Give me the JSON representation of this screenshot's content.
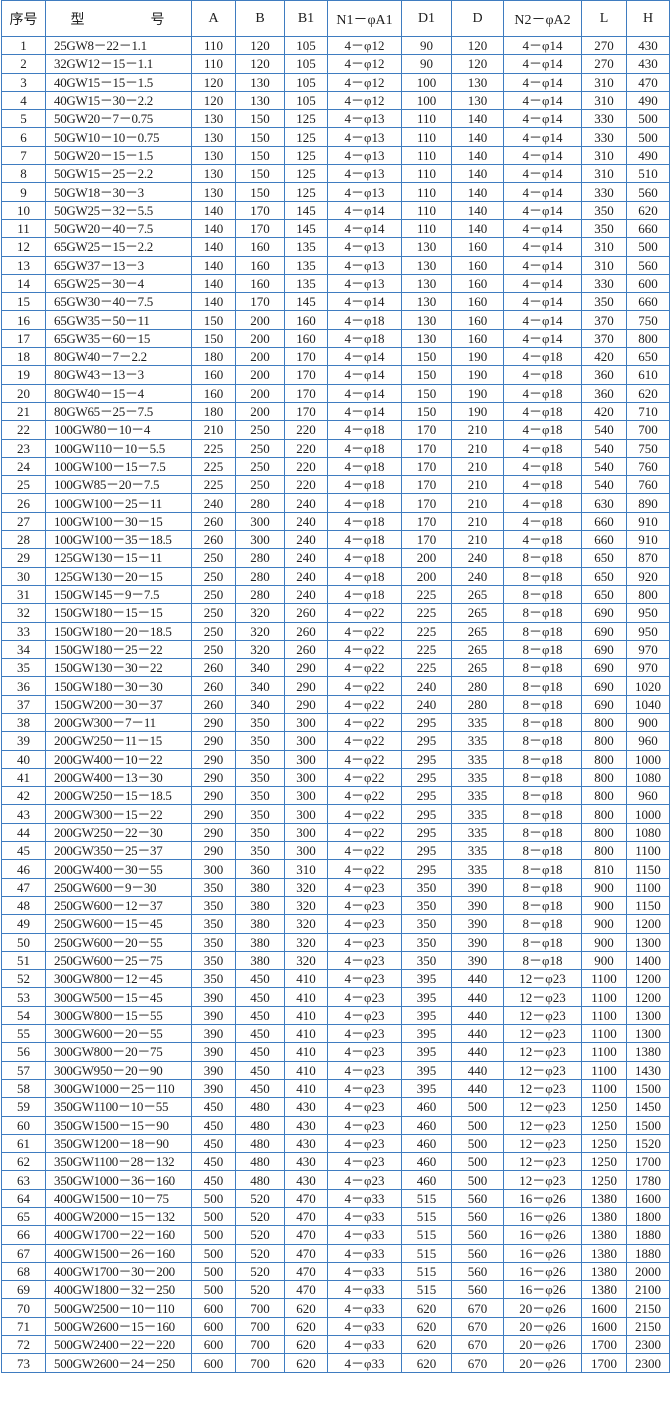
{
  "table": {
    "headers": [
      "序号",
      "型　　　　号",
      "A",
      "B",
      "B1",
      "N1－φA1",
      "D1",
      "D",
      "N2－φA2",
      "L",
      "H"
    ],
    "rows": [
      [
        "1",
        "25GW8－22－1.1",
        "110",
        "120",
        "105",
        "4－φ12",
        "90",
        "120",
        "4－φ14",
        "270",
        "430"
      ],
      [
        "2",
        "32GW12－15－1.1",
        "110",
        "120",
        "105",
        "4－φ12",
        "90",
        "120",
        "4－φ14",
        "270",
        "430"
      ],
      [
        "3",
        "40GW15－15－1.5",
        "120",
        "130",
        "105",
        "4－φ12",
        "100",
        "130",
        "4－φ14",
        "310",
        "470"
      ],
      [
        "4",
        "40GW15－30－2.2",
        "120",
        "130",
        "105",
        "4－φ12",
        "100",
        "130",
        "4－φ14",
        "310",
        "490"
      ],
      [
        "5",
        "50GW20－7－0.75",
        "130",
        "150",
        "125",
        "4－φ13",
        "110",
        "140",
        "4－φ14",
        "330",
        "500"
      ],
      [
        "6",
        "50GW10－10－0.75",
        "130",
        "150",
        "125",
        "4－φ13",
        "110",
        "140",
        "4－φ14",
        "330",
        "500"
      ],
      [
        "7",
        "50GW20－15－1.5",
        "130",
        "150",
        "125",
        "4－φ13",
        "110",
        "140",
        "4－φ14",
        "310",
        "490"
      ],
      [
        "8",
        "50GW15－25－2.2",
        "130",
        "150",
        "125",
        "4－φ13",
        "110",
        "140",
        "4－φ14",
        "310",
        "510"
      ],
      [
        "9",
        "50GW18－30－3",
        "130",
        "150",
        "125",
        "4－φ13",
        "110",
        "140",
        "4－φ14",
        "330",
        "560"
      ],
      [
        "10",
        "50GW25－32－5.5",
        "140",
        "170",
        "145",
        "4－φ14",
        "110",
        "140",
        "4－φ14",
        "350",
        "620"
      ],
      [
        "11",
        "50GW20－40－7.5",
        "140",
        "170",
        "145",
        "4－φ14",
        "110",
        "140",
        "4－φ14",
        "350",
        "660"
      ],
      [
        "12",
        "65GW25－15－2.2",
        "140",
        "160",
        "135",
        "4－φ13",
        "130",
        "160",
        "4－φ14",
        "310",
        "500"
      ],
      [
        "13",
        "65GW37－13－3",
        "140",
        "160",
        "135",
        "4－φ13",
        "130",
        "160",
        "4－φ14",
        "310",
        "560"
      ],
      [
        "14",
        "65GW25－30－4",
        "140",
        "160",
        "135",
        "4－φ13",
        "130",
        "160",
        "4－φ14",
        "330",
        "600"
      ],
      [
        "15",
        "65GW30－40－7.5",
        "140",
        "170",
        "145",
        "4－φ14",
        "130",
        "160",
        "4－φ14",
        "350",
        "660"
      ],
      [
        "16",
        "65GW35－50－11",
        "150",
        "200",
        "160",
        "4－φ18",
        "130",
        "160",
        "4－φ14",
        "370",
        "750"
      ],
      [
        "17",
        "65GW35－60－15",
        "150",
        "200",
        "160",
        "4－φ18",
        "130",
        "160",
        "4－φ14",
        "370",
        "800"
      ],
      [
        "18",
        "80GW40－7－2.2",
        "180",
        "200",
        "170",
        "4－φ14",
        "150",
        "190",
        "4－φ18",
        "420",
        "650"
      ],
      [
        "19",
        "80GW43－13－3",
        "160",
        "200",
        "170",
        "4－φ14",
        "150",
        "190",
        "4－φ18",
        "360",
        "610"
      ],
      [
        "20",
        "80GW40－15－4",
        "160",
        "200",
        "170",
        "4－φ14",
        "150",
        "190",
        "4－φ18",
        "360",
        "620"
      ],
      [
        "21",
        "80GW65－25－7.5",
        "180",
        "200",
        "170",
        "4－φ14",
        "150",
        "190",
        "4－φ18",
        "420",
        "710"
      ],
      [
        "22",
        "100GW80－10－4",
        "210",
        "250",
        "220",
        "4－φ18",
        "170",
        "210",
        "4－φ18",
        "540",
        "700"
      ],
      [
        "23",
        "100GW110－10－5.5",
        "225",
        "250",
        "220",
        "4－φ18",
        "170",
        "210",
        "4－φ18",
        "540",
        "750"
      ],
      [
        "24",
        "100GW100－15－7.5",
        "225",
        "250",
        "220",
        "4－φ18",
        "170",
        "210",
        "4－φ18",
        "540",
        "760"
      ],
      [
        "25",
        "100GW85－20－7.5",
        "225",
        "250",
        "220",
        "4－φ18",
        "170",
        "210",
        "4－φ18",
        "540",
        "760"
      ],
      [
        "26",
        "100GW100－25－11",
        "240",
        "280",
        "240",
        "4－φ18",
        "170",
        "210",
        "4－φ18",
        "630",
        "890"
      ],
      [
        "27",
        "100GW100－30－15",
        "260",
        "300",
        "240",
        "4－φ18",
        "170",
        "210",
        "4－φ18",
        "660",
        "910"
      ],
      [
        "28",
        "100GW100－35－18.5",
        "260",
        "300",
        "240",
        "4－φ18",
        "170",
        "210",
        "4－φ18",
        "660",
        "910"
      ],
      [
        "29",
        "125GW130－15－11",
        "250",
        "280",
        "240",
        "4－φ18",
        "200",
        "240",
        "8－φ18",
        "650",
        "870"
      ],
      [
        "30",
        "125GW130－20－15",
        "250",
        "280",
        "240",
        "4－φ18",
        "200",
        "240",
        "8－φ18",
        "650",
        "920"
      ],
      [
        "31",
        "150GW145－9－7.5",
        "250",
        "280",
        "240",
        "4－φ18",
        "225",
        "265",
        "8－φ18",
        "650",
        "800"
      ],
      [
        "32",
        "150GW180－15－15",
        "250",
        "320",
        "260",
        "4－φ22",
        "225",
        "265",
        "8－φ18",
        "690",
        "950"
      ],
      [
        "33",
        "150GW180－20－18.5",
        "250",
        "320",
        "260",
        "4－φ22",
        "225",
        "265",
        "8－φ18",
        "690",
        "950"
      ],
      [
        "34",
        "150GW180－25－22",
        "250",
        "320",
        "260",
        "4－φ22",
        "225",
        "265",
        "8－φ18",
        "690",
        "970"
      ],
      [
        "35",
        "150GW130－30－22",
        "260",
        "340",
        "290",
        "4－φ22",
        "225",
        "265",
        "8－φ18",
        "690",
        "970"
      ],
      [
        "36",
        "150GW180－30－30",
        "260",
        "340",
        "290",
        "4－φ22",
        "240",
        "280",
        "8－φ18",
        "690",
        "1020"
      ],
      [
        "37",
        "150GW200－30－37",
        "260",
        "340",
        "290",
        "4－φ22",
        "240",
        "280",
        "8－φ18",
        "690",
        "1040"
      ],
      [
        "38",
        "200GW300－7－11",
        "290",
        "350",
        "300",
        "4－φ22",
        "295",
        "335",
        "8－φ18",
        "800",
        "900"
      ],
      [
        "39",
        "200GW250－11－15",
        "290",
        "350",
        "300",
        "4－φ22",
        "295",
        "335",
        "8－φ18",
        "800",
        "960"
      ],
      [
        "40",
        "200GW400－10－22",
        "290",
        "350",
        "300",
        "4－φ22",
        "295",
        "335",
        "8－φ18",
        "800",
        "1000"
      ],
      [
        "41",
        "200GW400－13－30",
        "290",
        "350",
        "300",
        "4－φ22",
        "295",
        "335",
        "8－φ18",
        "800",
        "1080"
      ],
      [
        "42",
        "200GW250－15－18.5",
        "290",
        "350",
        "300",
        "4－φ22",
        "295",
        "335",
        "8－φ18",
        "800",
        "960"
      ],
      [
        "43",
        "200GW300－15－22",
        "290",
        "350",
        "300",
        "4－φ22",
        "295",
        "335",
        "8－φ18",
        "800",
        "1000"
      ],
      [
        "44",
        "200GW250－22－30",
        "290",
        "350",
        "300",
        "4－φ22",
        "295",
        "335",
        "8－φ18",
        "800",
        "1080"
      ],
      [
        "45",
        "200GW350－25－37",
        "290",
        "350",
        "300",
        "4－φ22",
        "295",
        "335",
        "8－φ18",
        "800",
        "1100"
      ],
      [
        "46",
        "200GW400－30－55",
        "300",
        "360",
        "310",
        "4－φ22",
        "295",
        "335",
        "8－φ18",
        "810",
        "1150"
      ],
      [
        "47",
        "250GW600－9－30",
        "350",
        "380",
        "320",
        "4－φ23",
        "350",
        "390",
        "8－φ18",
        "900",
        "1100"
      ],
      [
        "48",
        "250GW600－12－37",
        "350",
        "380",
        "320",
        "4－φ23",
        "350",
        "390",
        "8－φ18",
        "900",
        "1150"
      ],
      [
        "49",
        "250GW600－15－45",
        "350",
        "380",
        "320",
        "4－φ23",
        "350",
        "390",
        "8－φ18",
        "900",
        "1200"
      ],
      [
        "50",
        "250GW600－20－55",
        "350",
        "380",
        "320",
        "4－φ23",
        "350",
        "390",
        "8－φ18",
        "900",
        "1300"
      ],
      [
        "51",
        "250GW600－25－75",
        "350",
        "380",
        "320",
        "4－φ23",
        "350",
        "390",
        "8－φ18",
        "900",
        "1400"
      ],
      [
        "52",
        "300GW800－12－45",
        "350",
        "450",
        "410",
        "4－φ23",
        "395",
        "440",
        "12－φ23",
        "1100",
        "1200"
      ],
      [
        "53",
        "300GW500－15－45",
        "390",
        "450",
        "410",
        "4－φ23",
        "395",
        "440",
        "12－φ23",
        "1100",
        "1200"
      ],
      [
        "54",
        "300GW800－15－55",
        "390",
        "450",
        "410",
        "4－φ23",
        "395",
        "440",
        "12－φ23",
        "1100",
        "1300"
      ],
      [
        "55",
        "300GW600－20－55",
        "390",
        "450",
        "410",
        "4－φ23",
        "395",
        "440",
        "12－φ23",
        "1100",
        "1300"
      ],
      [
        "56",
        "300GW800－20－75",
        "390",
        "450",
        "410",
        "4－φ23",
        "395",
        "440",
        "12－φ23",
        "1100",
        "1380"
      ],
      [
        "57",
        "300GW950－20－90",
        "390",
        "450",
        "410",
        "4－φ23",
        "395",
        "440",
        "12－φ23",
        "1100",
        "1430"
      ],
      [
        "58",
        "300GW1000－25－110",
        "390",
        "450",
        "410",
        "4－φ23",
        "395",
        "440",
        "12－φ23",
        "1100",
        "1500"
      ],
      [
        "59",
        "350GW1100－10－55",
        "450",
        "480",
        "430",
        "4－φ23",
        "460",
        "500",
        "12－φ23",
        "1250",
        "1450"
      ],
      [
        "60",
        "350GW1500－15－90",
        "450",
        "480",
        "430",
        "4－φ23",
        "460",
        "500",
        "12－φ23",
        "1250",
        "1500"
      ],
      [
        "61",
        "350GW1200－18－90",
        "450",
        "480",
        "430",
        "4－φ23",
        "460",
        "500",
        "12－φ23",
        "1250",
        "1520"
      ],
      [
        "62",
        "350GW1100－28－132",
        "450",
        "480",
        "430",
        "4－φ23",
        "460",
        "500",
        "12－φ23",
        "1250",
        "1700"
      ],
      [
        "63",
        "350GW1000－36－160",
        "450",
        "480",
        "430",
        "4－φ23",
        "460",
        "500",
        "12－φ23",
        "1250",
        "1780"
      ],
      [
        "64",
        "400GW1500－10－75",
        "500",
        "520",
        "470",
        "4－φ33",
        "515",
        "560",
        "16－φ26",
        "1380",
        "1600"
      ],
      [
        "65",
        "400GW2000－15－132",
        "500",
        "520",
        "470",
        "4－φ33",
        "515",
        "560",
        "16－φ26",
        "1380",
        "1800"
      ],
      [
        "66",
        "400GW1700－22－160",
        "500",
        "520",
        "470",
        "4－φ33",
        "515",
        "560",
        "16－φ26",
        "1380",
        "1880"
      ],
      [
        "67",
        "400GW1500－26－160",
        "500",
        "520",
        "470",
        "4－φ33",
        "515",
        "560",
        "16－φ26",
        "1380",
        "1880"
      ],
      [
        "68",
        "400GW1700－30－200",
        "500",
        "520",
        "470",
        "4－φ33",
        "515",
        "560",
        "16－φ26",
        "1380",
        "2000"
      ],
      [
        "69",
        "400GW1800－32－250",
        "500",
        "520",
        "470",
        "4－φ33",
        "515",
        "560",
        "16－φ26",
        "1380",
        "2100"
      ],
      [
        "70",
        "500GW2500－10－110",
        "600",
        "700",
        "620",
        "4－φ33",
        "620",
        "670",
        "20－φ26",
        "1600",
        "2150"
      ],
      [
        "71",
        "500GW2600－15－160",
        "600",
        "700",
        "620",
        "4－φ33",
        "620",
        "670",
        "20－φ26",
        "1600",
        "2150"
      ],
      [
        "72",
        "500GW2400－22－220",
        "600",
        "700",
        "620",
        "4－φ33",
        "620",
        "670",
        "20－φ26",
        "1700",
        "2300"
      ],
      [
        "73",
        "500GW2600－24－250",
        "600",
        "700",
        "620",
        "4－φ33",
        "620",
        "670",
        "20－φ26",
        "1700",
        "2300"
      ]
    ]
  },
  "colors": {
    "grid": "#3f7cc0",
    "text": "#1e1e1e"
  }
}
